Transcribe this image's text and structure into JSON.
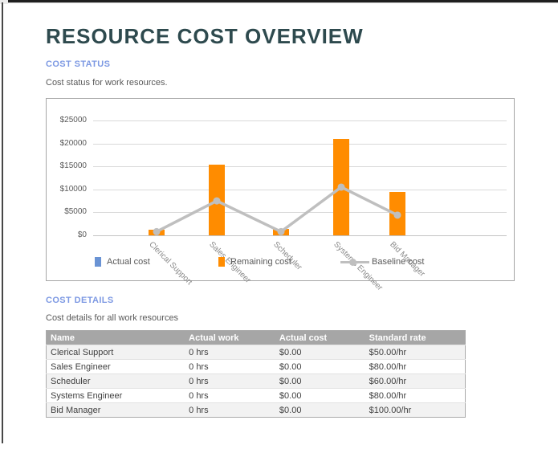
{
  "page": {
    "title": "RESOURCE COST OVERVIEW"
  },
  "cost_status": {
    "heading": "COST STATUS",
    "description": "Cost status for work resources."
  },
  "cost_details": {
    "heading": "COST DETAILS",
    "description": "Cost details for all work resources"
  },
  "chart_data": {
    "type": "bar",
    "subtype": "bar+line combo",
    "categories": [
      "Clerical Support",
      "Sales Engineer",
      "Scheduler",
      "Systems Engineer",
      "Bid Manager"
    ],
    "series": [
      {
        "name": "Actual cost",
        "kind": "bar",
        "color": "#6a93d4",
        "values": [
          0,
          0,
          0,
          0,
          0
        ]
      },
      {
        "name": "Remaining cost",
        "kind": "bar",
        "color": "#ff8c00",
        "values": [
          1200,
          15400,
          1400,
          21000,
          9400
        ]
      },
      {
        "name": "Baseline cost",
        "kind": "line",
        "color": "#bfbfbf",
        "values": [
          800,
          7500,
          800,
          10500,
          4400
        ]
      }
    ],
    "title": "",
    "xlabel": "",
    "ylabel": "",
    "ylim": [
      0,
      25000
    ],
    "ytick_labels": [
      "$0",
      "$5000",
      "$10000",
      "$15000",
      "$20000",
      "$25000"
    ],
    "grid": true,
    "legend_position": "bottom"
  },
  "table": {
    "headers": [
      "Name",
      "Actual work",
      "Actual cost",
      "Standard rate"
    ],
    "rows": [
      [
        "Clerical Support",
        "0 hrs",
        "$0.00",
        "$50.00/hr"
      ],
      [
        "Sales Engineer",
        "0 hrs",
        "$0.00",
        "$80.00/hr"
      ],
      [
        "Scheduler",
        "0 hrs",
        "$0.00",
        "$60.00/hr"
      ],
      [
        "Systems Engineer",
        "0 hrs",
        "$0.00",
        "$80.00/hr"
      ],
      [
        "Bid Manager",
        "0 hrs",
        "$0.00",
        "$100.00/hr"
      ]
    ]
  },
  "colors": {
    "title_text": "#2e4a4e",
    "section_heading": "#7d99e3",
    "body_text": "#595959",
    "bar_orange": "#ff8c00",
    "legend_blue": "#6a93d4",
    "baseline_gray": "#bfbfbf",
    "gridline": "#d9d9d9",
    "table_header_bg": "#a6a6a6",
    "table_row_alt_bg": "#f2f2f2"
  }
}
